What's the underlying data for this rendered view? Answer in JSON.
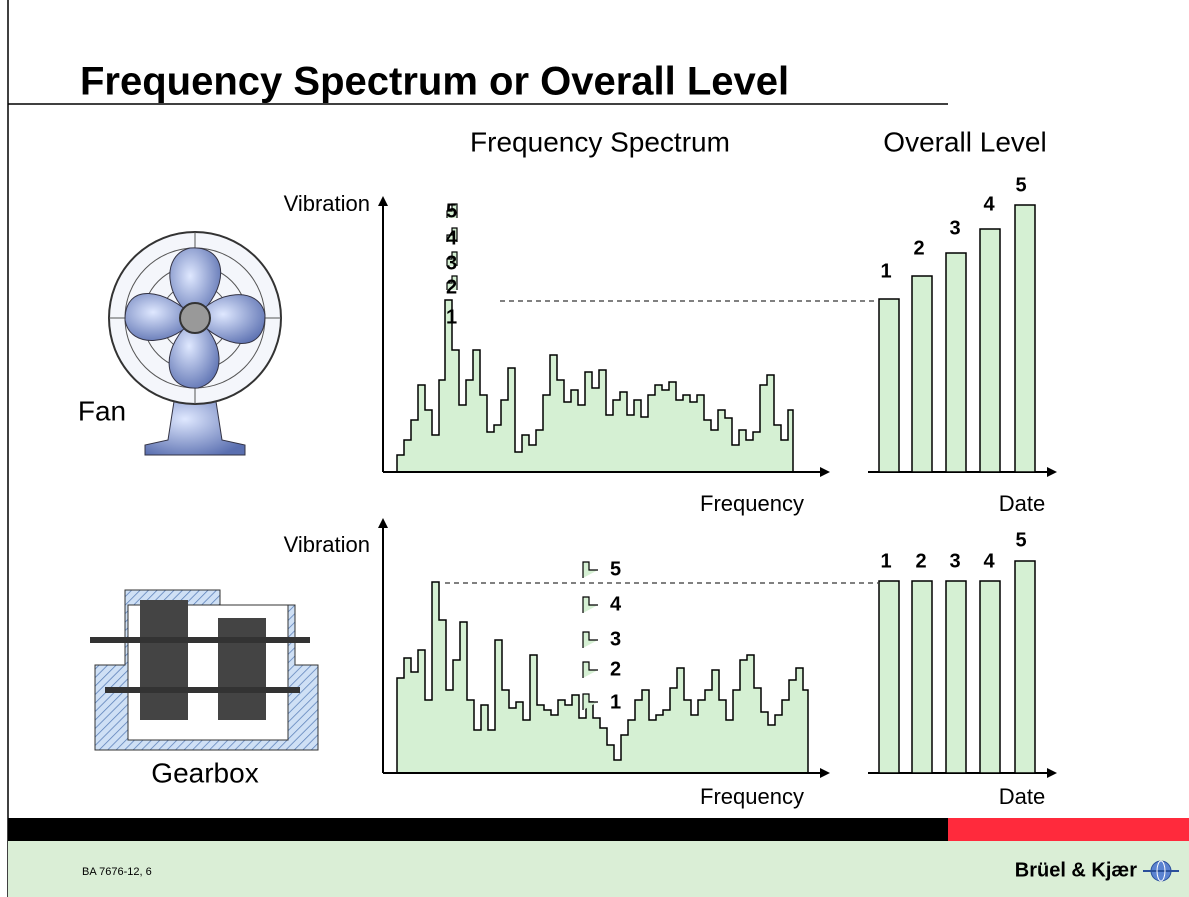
{
  "title": "Frequency Spectrum or Overall Level",
  "headings": {
    "spectrum": "Frequency Spectrum",
    "overall": "Overall Level"
  },
  "panels": [
    {
      "machine": "Fan",
      "y_axis": "Vibration",
      "x_axis_spectrum": "Frequency",
      "x_axis_overall": "Date",
      "peak_labels": [
        "1",
        "2",
        "3",
        "4",
        "5"
      ],
      "bar_labels": [
        "1",
        "2",
        "3",
        "4",
        "5"
      ]
    },
    {
      "machine": "Gearbox",
      "y_axis": "Vibration",
      "x_axis_spectrum": "Frequency",
      "x_axis_overall": "Date",
      "peak_labels": [
        "1",
        "2",
        "3",
        "4",
        "5"
      ],
      "bar_labels": [
        "1",
        "2",
        "3",
        "4",
        "5"
      ]
    }
  ],
  "footer": {
    "code": "BA 7676-12, 6",
    "brand": "Brüel & Kjær"
  }
}
